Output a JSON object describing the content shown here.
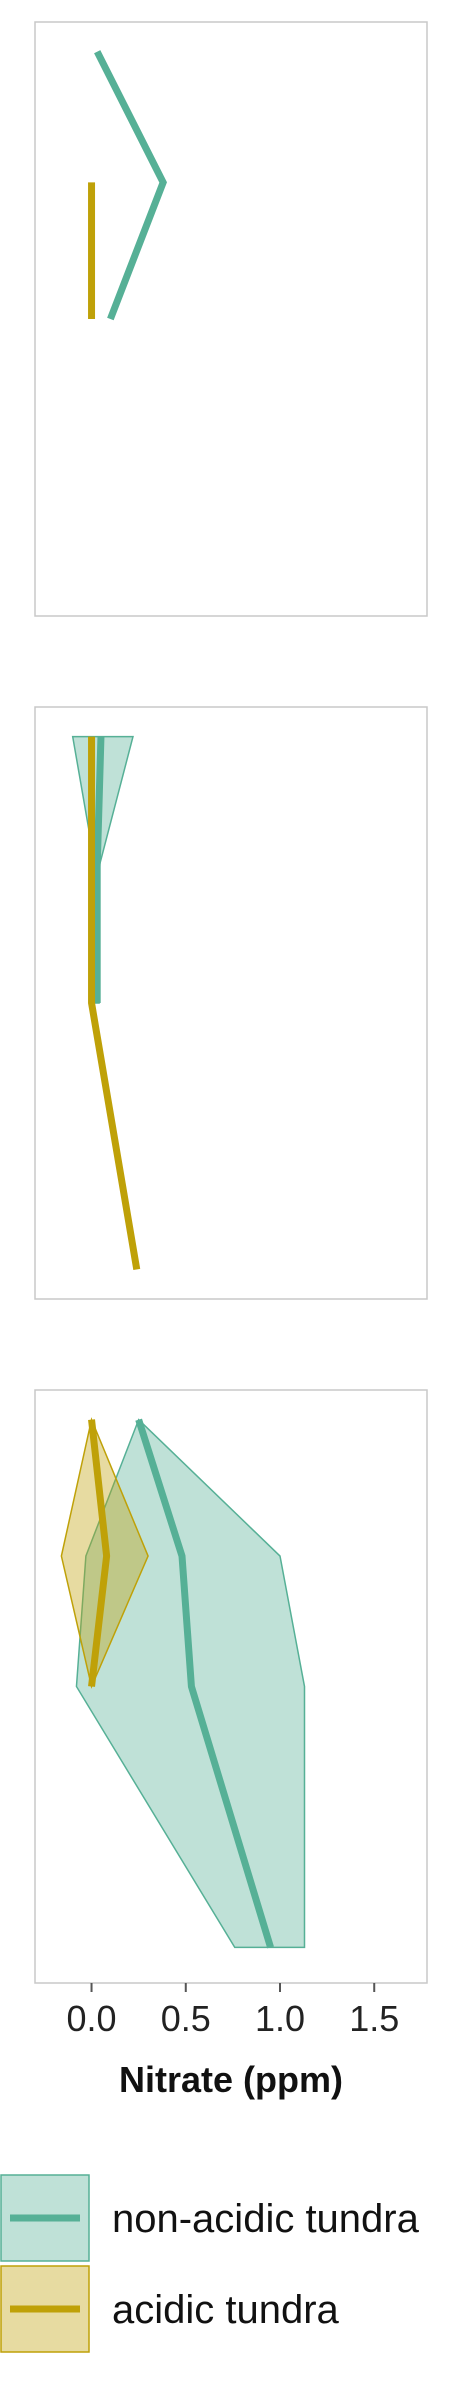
{
  "colors": {
    "non_acidic": "#56b096",
    "acidic": "#bfa108",
    "panel_border": "#c8c8c8",
    "tick": "#555555",
    "text": "#111111"
  },
  "chart_data": [
    {
      "type": "line",
      "panel": 1,
      "xlim": [
        -0.3,
        1.78
      ],
      "ylim": [
        0,
        1
      ],
      "series": [
        {
          "name": "non-acidic tundra",
          "x": [
            0.03,
            0.38,
            0.1
          ],
          "y": [
            0.95,
            0.73,
            0.5
          ]
        },
        {
          "name": "acidic tundra",
          "x": [
            0.0,
            0.0
          ],
          "y": [
            0.73,
            0.5
          ]
        }
      ]
    },
    {
      "type": "line",
      "panel": 2,
      "xlim": [
        -0.3,
        1.78
      ],
      "ylim": [
        0,
        1
      ],
      "series": [
        {
          "name": "non-acidic tundra",
          "x": [
            0.05,
            0.03,
            0.03
          ],
          "y": [
            0.95,
            0.73,
            0.5
          ],
          "band_low": [
            -0.1,
            0.02,
            0.02
          ],
          "band_high": [
            0.22,
            0.04,
            0.04
          ]
        },
        {
          "name": "acidic tundra",
          "x": [
            0.0,
            0.0,
            0.0,
            0.24
          ],
          "y": [
            0.95,
            0.73,
            0.5,
            0.05
          ]
        }
      ]
    },
    {
      "type": "line",
      "panel": 3,
      "xlim": [
        -0.3,
        1.78
      ],
      "ylim": [
        0,
        1
      ],
      "xticks": [
        "0.0",
        "0.5",
        "1.0",
        "1.5"
      ],
      "xtick_values": [
        0,
        0.5,
        1.0,
        1.5
      ],
      "xlabel": "Nitrate (ppm)",
      "series": [
        {
          "name": "non-acidic tundra",
          "x": [
            0.25,
            0.48,
            0.53,
            0.95
          ],
          "y": [
            0.95,
            0.72,
            0.5,
            0.06
          ],
          "band_low": [
            0.25,
            -0.03,
            -0.08,
            0.76
          ],
          "band_high": [
            0.25,
            1.0,
            1.13,
            1.13
          ]
        },
        {
          "name": "acidic tundra",
          "x": [
            0.0,
            0.08,
            0.0
          ],
          "y": [
            0.95,
            0.72,
            0.5
          ],
          "band_low": [
            0.0,
            -0.16,
            0.0
          ],
          "band_high": [
            0.0,
            0.3,
            0.0
          ]
        }
      ]
    }
  ],
  "legend": {
    "items": [
      {
        "label": "non-acidic tundra",
        "key": "non_acidic"
      },
      {
        "label": "acidic tundra",
        "key": "acidic"
      }
    ]
  }
}
